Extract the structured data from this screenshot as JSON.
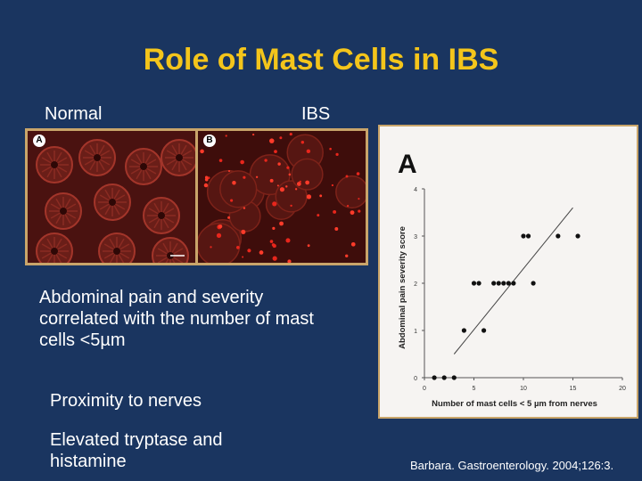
{
  "title": "Role of Mast Cells in IBS",
  "labels": {
    "normal": "Normal",
    "ibs": "IBS"
  },
  "micrographs": {
    "left_letter": "A",
    "right_letter": "B"
  },
  "bullets": [
    "Abdominal pain and severity correlated with the number of mast cells <5µm",
    "Proximity to nerves",
    "Elevated tryptase and histamine"
  ],
  "citation": "Barbara. Gastroenterology. 2004;126:3.",
  "chart_data": {
    "type": "scatter",
    "panel_label": "A",
    "xlabel": "Number of mast cells < 5 µm from nerves",
    "ylabel": "Abdominal pain severity score",
    "xlim": [
      0,
      20
    ],
    "ylim": [
      0,
      4
    ],
    "xticks": [
      0,
      5,
      10,
      15,
      20
    ],
    "yticks": [
      0,
      1,
      2,
      3,
      4
    ],
    "points": [
      [
        1,
        0
      ],
      [
        2,
        0
      ],
      [
        3,
        0
      ],
      [
        4,
        1
      ],
      [
        6,
        1
      ],
      [
        5,
        2
      ],
      [
        5.5,
        2
      ],
      [
        7,
        2
      ],
      [
        7.5,
        2
      ],
      [
        8,
        2
      ],
      [
        8.5,
        2
      ],
      [
        9,
        2
      ],
      [
        11,
        2
      ],
      [
        10,
        3
      ],
      [
        10.5,
        3
      ],
      [
        13.5,
        3
      ],
      [
        15.5,
        3
      ]
    ],
    "trendline": [
      [
        3,
        0.5
      ],
      [
        15,
        3.6
      ]
    ],
    "colors": {
      "point": "#111111",
      "line": "#444444"
    }
  }
}
